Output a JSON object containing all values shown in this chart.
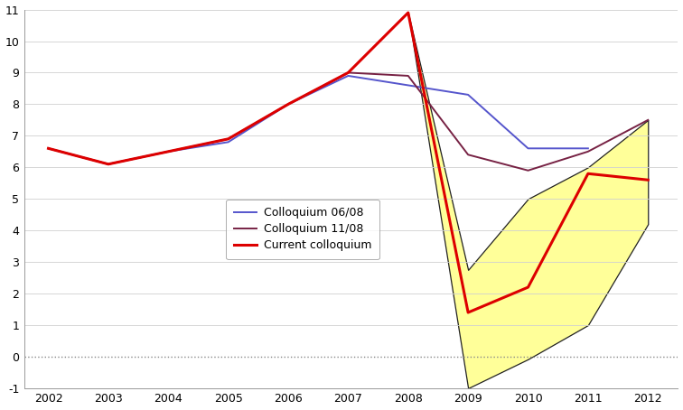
{
  "years_blue": [
    2002,
    2003,
    2004,
    2005,
    2006,
    2007,
    2008,
    2009,
    2010,
    2011
  ],
  "values_blue": [
    6.6,
    6.1,
    6.5,
    6.8,
    8.0,
    8.9,
    8.6,
    8.3,
    6.6,
    6.6
  ],
  "years_purple": [
    2002,
    2003,
    2004,
    2005,
    2006,
    2007,
    2008,
    2009,
    2010,
    2011,
    2012
  ],
  "values_purple": [
    6.6,
    6.1,
    6.5,
    6.9,
    8.0,
    9.0,
    8.9,
    6.4,
    5.9,
    6.5,
    7.5
  ],
  "years_red": [
    2002,
    2003,
    2004,
    2005,
    2006,
    2007,
    2008,
    2009,
    2010,
    2011,
    2012
  ],
  "values_red": [
    6.6,
    6.1,
    6.5,
    6.9,
    8.0,
    9.0,
    10.9,
    1.4,
    2.2,
    5.8,
    5.6
  ],
  "fill_years": [
    2008,
    2009,
    2010,
    2011,
    2012
  ],
  "fill_upper": [
    10.9,
    2.75,
    5.0,
    6.0,
    7.5
  ],
  "fill_lower": [
    10.9,
    -1.0,
    -0.08,
    1.0,
    4.2
  ],
  "fill_color": "#ffff99",
  "fill_edge_color": "#222222",
  "blue_color": "#5555cc",
  "purple_color": "#772244",
  "red_color": "#dd0000",
  "ylim": [
    -1,
    11
  ],
  "xlim": [
    2001.6,
    2012.5
  ],
  "yticks": [
    -1,
    0,
    1,
    2,
    3,
    4,
    5,
    6,
    7,
    8,
    9,
    10,
    11
  ],
  "xticks": [
    2002,
    2003,
    2004,
    2005,
    2006,
    2007,
    2008,
    2009,
    2010,
    2011,
    2012
  ],
  "legend_labels": [
    "Colloquium 06/08",
    "Colloquium 11/08",
    "Current colloquium"
  ],
  "grid_color": "#d0d0d0",
  "zero_dotted_color": "#888888"
}
